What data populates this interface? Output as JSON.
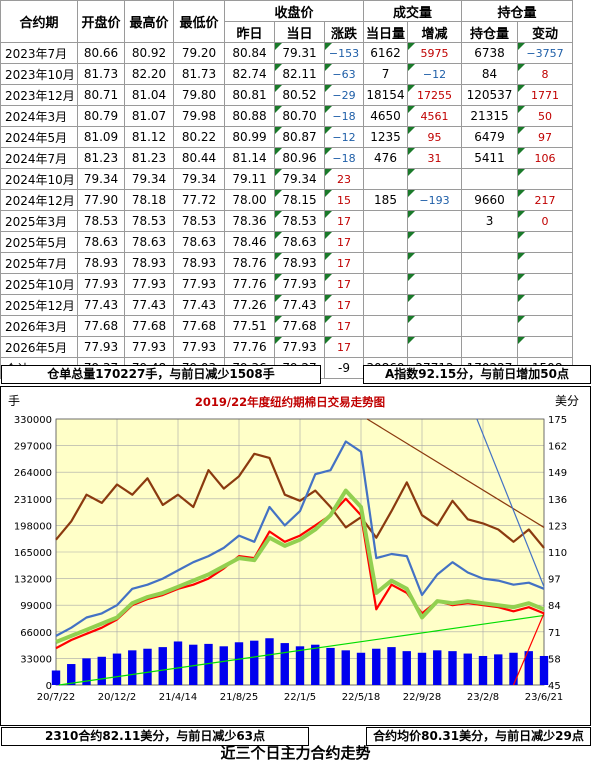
{
  "table": {
    "header_top": {
      "close_group": "收盘价",
      "volume_group": "成交量",
      "oi_group": "持仓量"
    },
    "columns": [
      "合约期",
      "开盘价",
      "最高价",
      "最低价",
      "昨日",
      "当日",
      "涨跌",
      "当日量",
      "增减",
      "持仓量",
      "变动"
    ],
    "rows": [
      [
        "2023年7月",
        "80.66",
        "80.92",
        "79.20",
        "80.84",
        "79.31",
        "−153",
        "6162",
        "5975",
        "6738",
        "−3757"
      ],
      [
        "2023年10月",
        "81.73",
        "82.20",
        "81.73",
        "82.74",
        "82.11",
        "−63",
        "7",
        "−12",
        "84",
        "8"
      ],
      [
        "2023年12月",
        "80.71",
        "81.04",
        "79.80",
        "80.81",
        "80.52",
        "−29",
        "18154",
        "17255",
        "120537",
        "1771"
      ],
      [
        "2024年3月",
        "80.79",
        "81.07",
        "79.98",
        "80.88",
        "80.70",
        "−18",
        "4650",
        "4561",
        "21315",
        "50"
      ],
      [
        "2024年5月",
        "81.09",
        "81.12",
        "80.22",
        "80.99",
        "80.87",
        "−12",
        "1235",
        "95",
        "6479",
        "97"
      ],
      [
        "2024年7月",
        "81.23",
        "81.23",
        "80.44",
        "81.14",
        "80.96",
        "−18",
        "476",
        "31",
        "5411",
        "106"
      ],
      [
        "2024年10月",
        "79.34",
        "79.34",
        "79.34",
        "79.11",
        "79.34",
        "23",
        "",
        "",
        "",
        ""
      ],
      [
        "2024年12月",
        "77.90",
        "78.18",
        "77.72",
        "78.00",
        "78.15",
        "15",
        "185",
        "−193",
        "9660",
        "217"
      ],
      [
        "2025年3月",
        "78.53",
        "78.53",
        "78.53",
        "78.36",
        "78.53",
        "17",
        "",
        "",
        "3",
        "0"
      ],
      [
        "2025年5月",
        "78.63",
        "78.63",
        "78.63",
        "78.46",
        "78.63",
        "17",
        "",
        "",
        "",
        ""
      ],
      [
        "2025年7月",
        "78.93",
        "78.93",
        "78.93",
        "78.76",
        "78.93",
        "17",
        "",
        "",
        "",
        ""
      ],
      [
        "2025年10月",
        "77.93",
        "77.93",
        "77.93",
        "77.76",
        "77.93",
        "17",
        "",
        "",
        "",
        ""
      ],
      [
        "2025年12月",
        "77.43",
        "77.43",
        "77.43",
        "77.26",
        "77.43",
        "17",
        "",
        "",
        "",
        ""
      ],
      [
        "2026年3月",
        "77.68",
        "77.68",
        "77.68",
        "77.51",
        "77.68",
        "17",
        "",
        "",
        "",
        ""
      ],
      [
        "2026年5月",
        "77.93",
        "77.93",
        "77.93",
        "77.76",
        "77.93",
        "17",
        "",
        "",
        "",
        ""
      ]
    ],
    "total": [
      "合计",
      "79.37",
      "79.48",
      "79.03",
      "79.36",
      "79.27",
      "-9",
      "30869",
      "27712",
      "170227",
      "-1508"
    ]
  },
  "info": {
    "warehouse": "仓单总量170227手，与前日减少1508手",
    "a_index": "A指数92.15分，与前日增加50点",
    "contract_2310": "2310合约82.11美分，与前日减少63点",
    "contract_avg": "合约均价80.31美分，与前日减少29点"
  },
  "footer": "近三个日主力合约走势",
  "colors": {
    "up": "#c00000",
    "down": "#1f5fa8",
    "grid": "#a8a8a8",
    "plot_bg": "#ffffc8",
    "marker": "#1a7a2a"
  },
  "chart_data": {
    "type": "line",
    "title": "2019/22年度纽约期棉日交易走势图",
    "left_axis_label": "手",
    "right_axis_label": "美分",
    "left_ylim": [
      0,
      330000
    ],
    "left_ticks": [
      "0",
      "33000",
      "66000",
      "99000",
      "132000",
      "165000",
      "198000",
      "231000",
      "264000",
      "297000",
      "330000"
    ],
    "right_ylim": [
      45,
      175
    ],
    "right_ticks": [
      "45",
      "58",
      "71",
      "84",
      "97",
      "110",
      "123",
      "136",
      "149",
      "162",
      "175"
    ],
    "x_ticks": [
      "20/7/22",
      "20/12/2",
      "21/4/14",
      "21/8/25",
      "22/1/5",
      "22/5/18",
      "22/9/28",
      "23/2/8",
      "23/6/21"
    ],
    "x_range": [
      0,
      8
    ],
    "series": [
      {
        "color": "#8b3a0f",
        "axis": "right",
        "kind": "line",
        "points": [
          [
            0,
            116
          ],
          [
            0.25,
            125
          ],
          [
            0.5,
            138
          ],
          [
            0.75,
            134
          ],
          [
            1,
            143
          ],
          [
            1.25,
            138
          ],
          [
            1.5,
            146
          ],
          [
            1.75,
            133
          ],
          [
            2,
            138
          ],
          [
            2.25,
            132
          ],
          [
            2.5,
            150
          ],
          [
            2.75,
            141
          ],
          [
            3,
            147
          ],
          [
            3.25,
            158
          ],
          [
            3.5,
            156
          ],
          [
            3.75,
            138
          ],
          [
            4,
            135
          ],
          [
            4.25,
            140
          ],
          [
            4.5,
            132
          ],
          [
            4.75,
            122
          ],
          [
            5,
            127
          ],
          [
            5.25,
            117
          ],
          [
            5.5,
            130
          ],
          [
            5.75,
            144
          ],
          [
            6,
            128
          ],
          [
            6.25,
            123
          ],
          [
            6.5,
            135
          ],
          [
            6.75,
            126
          ],
          [
            7,
            124
          ],
          [
            7.25,
            121
          ],
          [
            7.5,
            115
          ],
          [
            7.75,
            121
          ],
          [
            8,
            112
          ]
        ]
      },
      {
        "color": "#4472c4",
        "axis": "right",
        "kind": "line",
        "points": [
          [
            0,
            69
          ],
          [
            0.25,
            73
          ],
          [
            0.5,
            78
          ],
          [
            0.75,
            80
          ],
          [
            1,
            84
          ],
          [
            1.25,
            92
          ],
          [
            1.5,
            94
          ],
          [
            1.75,
            97
          ],
          [
            2,
            101
          ],
          [
            2.25,
            105
          ],
          [
            2.5,
            108
          ],
          [
            2.75,
            112
          ],
          [
            3,
            118
          ],
          [
            3.25,
            115
          ],
          [
            3.5,
            132
          ],
          [
            3.75,
            123
          ],
          [
            4,
            130
          ],
          [
            4.25,
            148
          ],
          [
            4.5,
            150
          ],
          [
            4.75,
            164
          ],
          [
            5,
            159
          ],
          [
            5.25,
            107
          ],
          [
            5.5,
            109
          ],
          [
            5.75,
            108
          ],
          [
            6,
            89
          ],
          [
            6.25,
            99
          ],
          [
            6.5,
            105
          ],
          [
            6.75,
            100
          ],
          [
            7,
            97
          ],
          [
            7.25,
            96
          ],
          [
            7.5,
            94
          ],
          [
            7.75,
            95
          ],
          [
            8,
            92
          ]
        ]
      },
      {
        "color": "#ff0000",
        "axis": "right",
        "kind": "line",
        "points": [
          [
            0,
            63
          ],
          [
            0.25,
            67
          ],
          [
            0.5,
            70
          ],
          [
            0.75,
            73
          ],
          [
            1,
            77
          ],
          [
            1.25,
            84
          ],
          [
            1.5,
            87
          ],
          [
            1.75,
            89
          ],
          [
            2,
            92
          ],
          [
            2.25,
            94
          ],
          [
            2.5,
            97
          ],
          [
            2.75,
            102
          ],
          [
            3,
            108
          ],
          [
            3.25,
            107
          ],
          [
            3.5,
            120
          ],
          [
            3.75,
            115
          ],
          [
            4,
            118
          ],
          [
            4.25,
            123
          ],
          [
            4.5,
            128
          ],
          [
            4.75,
            136
          ],
          [
            5,
            128
          ],
          [
            5.25,
            82
          ],
          [
            5.5,
            94
          ],
          [
            5.75,
            90
          ],
          [
            6,
            80
          ],
          [
            6.25,
            86
          ],
          [
            6.5,
            84
          ],
          [
            6.75,
            85
          ],
          [
            7,
            84
          ],
          [
            7.25,
            83
          ],
          [
            7.5,
            81
          ],
          [
            7.75,
            83
          ],
          [
            8,
            80
          ]
        ]
      },
      {
        "color": "#92d050",
        "axis": "right",
        "kind": "line",
        "points": [
          [
            0,
            66
          ],
          [
            0.25,
            69
          ],
          [
            0.5,
            72
          ],
          [
            0.75,
            75
          ],
          [
            1,
            78
          ],
          [
            1.25,
            85
          ],
          [
            1.5,
            88
          ],
          [
            1.75,
            90
          ],
          [
            2,
            93
          ],
          [
            2.25,
            96
          ],
          [
            2.5,
            99
          ],
          [
            2.75,
            103
          ],
          [
            3,
            107
          ],
          [
            3.25,
            106
          ],
          [
            3.5,
            117
          ],
          [
            3.75,
            113
          ],
          [
            4,
            116
          ],
          [
            4.25,
            121
          ],
          [
            4.5,
            128
          ],
          [
            4.75,
            140
          ],
          [
            5,
            132
          ],
          [
            5.25,
            90
          ],
          [
            5.5,
            96
          ],
          [
            5.75,
            92
          ],
          [
            6,
            78
          ],
          [
            6.25,
            86
          ],
          [
            6.5,
            85
          ],
          [
            6.75,
            86
          ],
          [
            7,
            85
          ],
          [
            7.25,
            84
          ],
          [
            7.5,
            83
          ],
          [
            7.75,
            85
          ],
          [
            8,
            82
          ]
        ]
      },
      {
        "color": "#0000ee",
        "axis": "left",
        "kind": "bar",
        "points": [
          [
            0,
            18000
          ],
          [
            0.25,
            26000
          ],
          [
            0.5,
            33000
          ],
          [
            0.75,
            35000
          ],
          [
            1,
            39000
          ],
          [
            1.25,
            43000
          ],
          [
            1.5,
            45000
          ],
          [
            1.75,
            47000
          ],
          [
            2,
            54000
          ],
          [
            2.25,
            50000
          ],
          [
            2.5,
            51000
          ],
          [
            2.75,
            48000
          ],
          [
            3,
            53000
          ],
          [
            3.25,
            55000
          ],
          [
            3.5,
            58000
          ],
          [
            3.75,
            52000
          ],
          [
            4,
            48000
          ],
          [
            4.25,
            50000
          ],
          [
            4.5,
            46000
          ],
          [
            4.75,
            43000
          ],
          [
            5,
            40000
          ],
          [
            5.25,
            45000
          ],
          [
            5.5,
            47000
          ],
          [
            5.75,
            42000
          ],
          [
            6,
            40000
          ],
          [
            6.25,
            43000
          ],
          [
            6.5,
            42000
          ],
          [
            6.75,
            39000
          ],
          [
            7,
            36000
          ],
          [
            7.25,
            38000
          ],
          [
            7.5,
            40000
          ],
          [
            7.75,
            42000
          ],
          [
            8,
            36000
          ]
        ]
      }
    ],
    "annotations": [
      {
        "color": "#00dd00",
        "points": [
          [
            0.05,
            45
          ],
          [
            8,
            79
          ]
        ]
      },
      {
        "color": "#8b3a0f",
        "points": [
          [
            5.1,
            175
          ],
          [
            8,
            122
          ]
        ]
      },
      {
        "color": "#4472c4",
        "points": [
          [
            6.9,
            175
          ],
          [
            8,
            93
          ]
        ]
      },
      {
        "color": "#ff0000",
        "points": [
          [
            7.5,
            45
          ],
          [
            8,
            80
          ]
        ]
      }
    ]
  }
}
